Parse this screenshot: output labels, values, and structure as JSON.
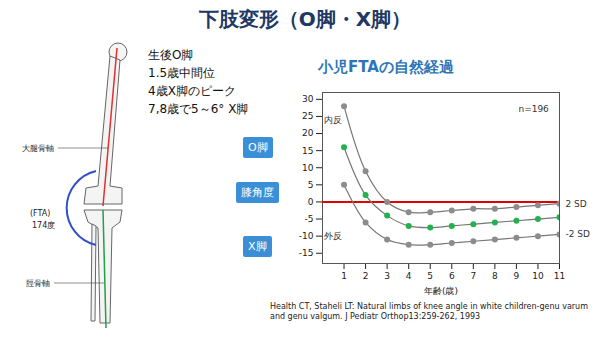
{
  "slide": {
    "title": "下肢変形（O脚・X脚）",
    "list": [
      "生後O脚",
      "1.5歳中間位",
      "4歳X脚のピーク",
      "7,8歳で5～6° X脚"
    ],
    "badges": [
      "O脚",
      "膝角度",
      "X脚"
    ],
    "diagram": {
      "femoral_axis": "大腿骨軸",
      "angle_name": "(FTA)",
      "angle_value": "174度",
      "tibial_axis": "脛骨軸"
    },
    "citation": "Health CT, Staheli LT: Natural limbs of knee angle in white children-genu varum and genu valgum. J Pediatr Orthop13:259-262, 1993"
  },
  "chart_data": {
    "type": "line",
    "title": "小児FTAの自然経過",
    "xlabel": "年齢(歳)",
    "x": [
      1,
      2,
      3,
      4,
      5,
      6,
      7,
      8,
      9,
      10,
      11
    ],
    "series": [
      {
        "name": "2 SD",
        "color": "#8c8c8c",
        "values": [
          28,
          9,
          0,
          -3,
          -3,
          -2.5,
          -2,
          -2,
          -1.5,
          -1,
          -0.5
        ]
      },
      {
        "color": "#22b14c",
        "values": [
          16,
          2,
          -4,
          -7,
          -7.5,
          -7,
          -6.5,
          -6,
          -5.5,
          -5,
          -4.5
        ]
      },
      {
        "name": "-2 SD",
        "color": "#8c8c8c",
        "values": [
          5,
          -6,
          -11,
          -12.5,
          -12.5,
          -12,
          -11.5,
          -11,
          -10.5,
          -10,
          -9.5
        ]
      }
    ],
    "xlim": [
      0,
      11
    ],
    "xticks": [
      1,
      2,
      3,
      4,
      5,
      6,
      7,
      8,
      9,
      10,
      11
    ],
    "ylim": [
      -18,
      32
    ],
    "yticks": [
      -15,
      -10,
      -5,
      0,
      5,
      10,
      15,
      20,
      25,
      30
    ],
    "grid": false,
    "marker": "circle",
    "reference_lines": [
      {
        "y": 0,
        "color": "#e00000"
      }
    ],
    "annotations": [
      {
        "text": "n=196",
        "x": 9.8,
        "y": 27
      },
      {
        "text": "内反",
        "x": 0.5,
        "y": 24
      },
      {
        "text": "外反",
        "x": 0.5,
        "y": -10
      }
    ]
  }
}
